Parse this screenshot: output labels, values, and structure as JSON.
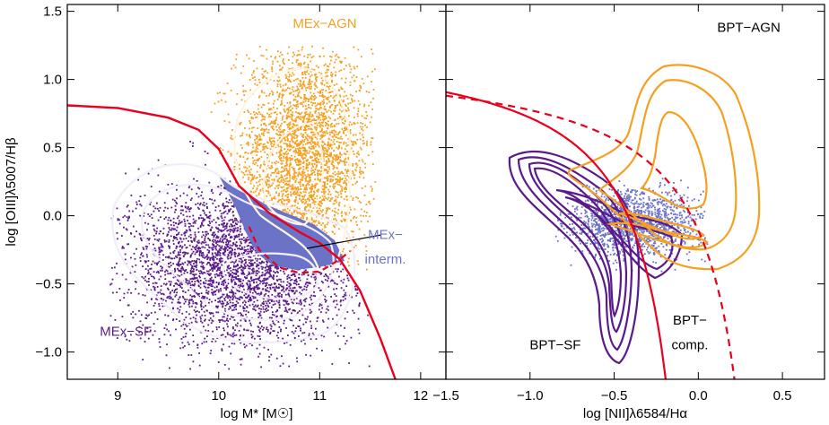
{
  "chart_data": [
    {
      "type": "scatter",
      "panel": "left",
      "xlabel": "log M* [M☉]",
      "ylabel": "log [OIII]λ5007/Hβ",
      "xlim": [
        8.5,
        12.25
      ],
      "ylim": [
        -1.2,
        1.55
      ],
      "xticks": [
        9,
        10,
        11,
        12
      ],
      "yticks": [
        -1.0,
        -0.5,
        0.0,
        0.5,
        1.0,
        1.5
      ],
      "ytick_labels": [
        "−1.0",
        "−0.5",
        "0.0",
        "0.5",
        "1.0",
        "1.5"
      ],
      "grid": false,
      "legend": "none",
      "series": [
        {
          "name": "MEx-AGN",
          "color": "#f5a021",
          "center": [
            10.85,
            0.45
          ],
          "spread": [
            0.45,
            0.38
          ]
        },
        {
          "name": "MEx-SF",
          "color": "#5a1a8c",
          "center": [
            10.2,
            -0.35
          ],
          "spread": [
            0.55,
            0.3
          ]
        },
        {
          "name": "MEx-interm.",
          "color": "#6b73c8"
        }
      ],
      "demarcation_upper": {
        "x": [
          8.5,
          9.0,
          9.5,
          9.8,
          10.0,
          10.2,
          10.5,
          10.8,
          11.0,
          11.2,
          11.4,
          11.6,
          11.75
        ],
        "y": [
          0.81,
          0.79,
          0.72,
          0.63,
          0.49,
          0.22,
          0.02,
          -0.12,
          -0.2,
          -0.32,
          -0.55,
          -0.9,
          -1.2
        ]
      },
      "demarcation_lower": {
        "x": [
          10.3,
          10.4,
          10.6,
          10.8,
          11.0,
          11.2,
          11.3
        ],
        "y": [
          -0.08,
          -0.25,
          -0.38,
          -0.42,
          -0.41,
          -0.32,
          -0.26
        ]
      },
      "annotations": [
        {
          "text": "MEx−AGN",
          "x": 11.05,
          "y": 1.38,
          "color": "#f5a021"
        },
        {
          "text": "MEx−",
          "x": 11.65,
          "y": -0.17,
          "color": "#6b73c8"
        },
        {
          "text": "interm.",
          "x": 11.65,
          "y": -0.35,
          "color": "#6b73c8"
        },
        {
          "text": "MEx−SF",
          "x": 9.08,
          "y": -0.88,
          "color": "#5a1a8c"
        }
      ]
    },
    {
      "type": "scatter",
      "panel": "right",
      "xlabel": "log [NII]λ6584/Hα",
      "ylabel": "",
      "xlim": [
        -1.5,
        0.75
      ],
      "ylim": [
        -1.2,
        1.55
      ],
      "xticks": [
        -1.5,
        -1.0,
        -0.5,
        0.0,
        0.5
      ],
      "xtick_labels": [
        "−1.5",
        "−1.0",
        "−0.5",
        "0.0",
        "0.5"
      ],
      "grid": false,
      "legend": "none",
      "series": [
        {
          "name": "MEx-interm.",
          "color": "#6b73c8",
          "center": [
            -0.38,
            -0.05
          ],
          "spread": [
            0.2,
            0.12
          ]
        }
      ],
      "kauffmann_line": {
        "color": "#e8001c",
        "style": "solid"
      },
      "kewley_line": {
        "color": "#e8001c",
        "style": "dashed"
      },
      "annotations": [
        {
          "text": "BPT−AGN",
          "x": 0.3,
          "y": 1.35,
          "color": "#000000"
        },
        {
          "text": "BPT−SF",
          "x": -0.85,
          "y": -0.98,
          "color": "#000000"
        },
        {
          "text": "BPT−",
          "x": -0.05,
          "y": -0.8,
          "color": "#000000"
        },
        {
          "text": "comp.",
          "x": -0.05,
          "y": -0.98,
          "color": "#000000"
        }
      ]
    }
  ]
}
